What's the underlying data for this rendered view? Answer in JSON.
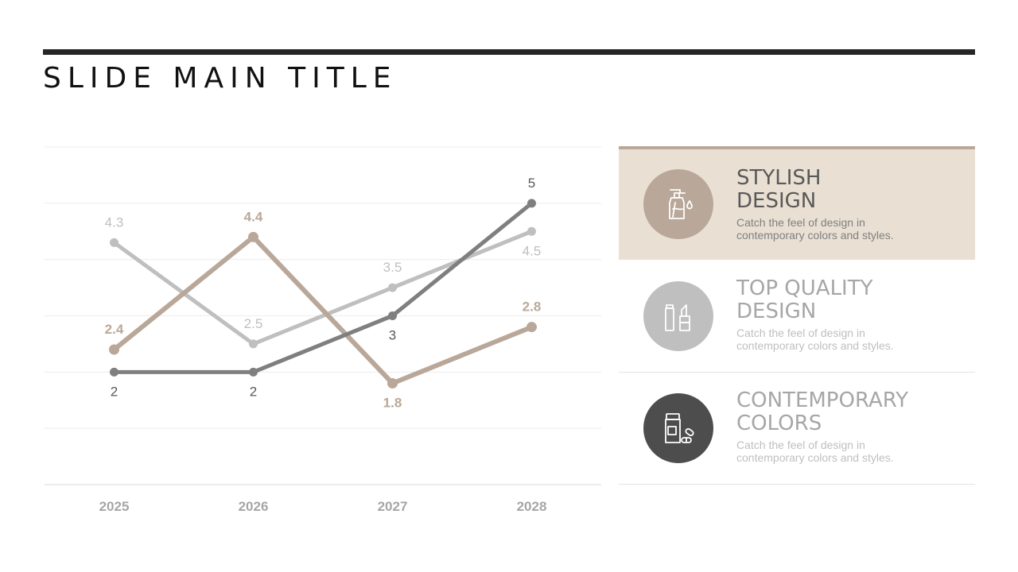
{
  "slide": {
    "title": "SLIDE MAIN TITLE"
  },
  "colors": {
    "tan": "#b9a899",
    "light_gray": "#bfbfbf",
    "dark_gray": "#7f7f7f",
    "panel_bg": "#e9e0d3",
    "circle_dark": "#4d4d4d",
    "axis_label": "#a6a6a6"
  },
  "panels": [
    {
      "icon": "pump-bottle-icon",
      "heading_line1": "STYLISH",
      "heading_line2": "DESIGN",
      "description": "Catch the feel of design in contemporary colors and styles.",
      "circle_color": "#b9a899",
      "heading_color": "#595959",
      "text_color": "#7f7f7f"
    },
    {
      "icon": "lipstick-icon",
      "heading_line1": "TOP QUALITY",
      "heading_line2": "DESIGN",
      "description": "Catch the feel of design in contemporary colors and styles.",
      "circle_color": "#bfbfbf",
      "heading_color": "#a6a6a6",
      "text_color": "#bfbfbf"
    },
    {
      "icon": "pill-bottle-icon",
      "heading_line1": "CONTEMPORARY",
      "heading_line2": "COLORS",
      "description": "Catch the feel of design in contemporary colors and styles.",
      "circle_color": "#4d4d4d",
      "heading_color": "#a6a6a6",
      "text_color": "#bfbfbf"
    }
  ],
  "chart_data": {
    "type": "line",
    "title": "",
    "xlabel": "",
    "ylabel": "",
    "categories": [
      "2025",
      "2026",
      "2027",
      "2028"
    ],
    "ylim": [
      0,
      6
    ],
    "grid": true,
    "legend": "none",
    "series": [
      {
        "values": [
          4.3,
          2.5,
          3.5,
          4.5
        ],
        "color": "#bfbfbf",
        "label_color": "#bfbfbf",
        "label_bold": false,
        "label_pos": [
          "above",
          "above",
          "above",
          "below"
        ]
      },
      {
        "values": [
          2.4,
          4.4,
          1.8,
          2.8
        ],
        "color": "#b9a899",
        "label_color": "#b9a899",
        "label_bold": true,
        "label_pos": [
          "above",
          "above",
          "below",
          "above"
        ]
      },
      {
        "values": [
          2,
          2,
          3,
          5
        ],
        "color": "#7f7f7f",
        "label_color": "#595959",
        "label_bold": false,
        "label_pos": [
          "below",
          "below",
          "below",
          "above"
        ]
      }
    ]
  }
}
